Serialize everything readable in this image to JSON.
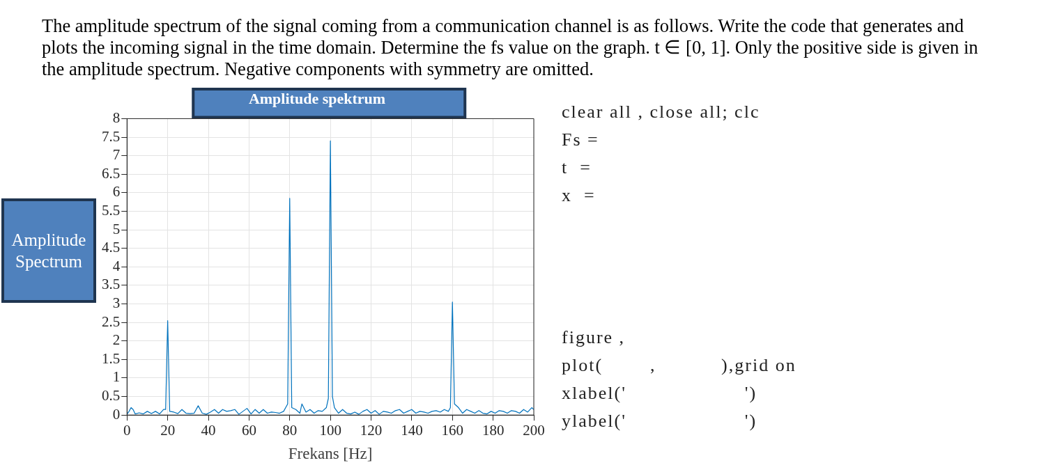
{
  "chart_data": {
    "type": "line",
    "title": "The amplitude spectrum of the signal coming from a communication channel is as follows. Write the code that generates and plots the incoming signal in the time domain. Determine the fs value on the graph. t ∈ [0, 1]. Only the positive side is given in the amplitude spectrum. Negative components with symmetry are omitted.",
    "subtitle": "Amplitude spektrum",
    "xlabel": "Frekans [Hz]",
    "ylabel": "Amplitude Spectrum",
    "annotations": [
      "clear all , close all; clc",
      "Fs =",
      "t  =",
      "x  =",
      "figure ,",
      "plot(        ,           ),grid on",
      "xlabel('                    ')",
      "ylabel('                    ')"
    ],
    "x": [
      0,
      1,
      2,
      3,
      4,
      6,
      8,
      10,
      12,
      14,
      16,
      18,
      19,
      20,
      21,
      23,
      25,
      27,
      29,
      31,
      33,
      35,
      37,
      39,
      41,
      43,
      45,
      47,
      49,
      51,
      53,
      55,
      57,
      59,
      61,
      63,
      65,
      67,
      69,
      71,
      73,
      75,
      77,
      79,
      80,
      81,
      83,
      85,
      86,
      88,
      90,
      92,
      94,
      96,
      98,
      99,
      100,
      101,
      102,
      104,
      106,
      108,
      110,
      112,
      114,
      116,
      118,
      120,
      122,
      124,
      126,
      128,
      130,
      132,
      134,
      136,
      138,
      140,
      142,
      144,
      146,
      148,
      150,
      152,
      154,
      156,
      158,
      159,
      160,
      161,
      163,
      165,
      167,
      169,
      171,
      173,
      175,
      177,
      179,
      181,
      183,
      185,
      187,
      189,
      191,
      193,
      195,
      197,
      199,
      200
    ],
    "series": [
      {
        "color": "#0072bd",
        "values": [
          0.02,
          0.1,
          0.2,
          0.15,
          0.03,
          0.06,
          0.03,
          0.1,
          0.04,
          0.1,
          0.03,
          0.15,
          0.15,
          2.55,
          0.1,
          0.08,
          0.04,
          0.15,
          0.05,
          0.04,
          0.05,
          0.25,
          0.05,
          0.02,
          0.08,
          0.15,
          0.05,
          0.15,
          0.1,
          0.12,
          0.15,
          0.02,
          0.1,
          0.18,
          0.03,
          0.15,
          0.05,
          0.15,
          0.05,
          0.08,
          0.07,
          0.05,
          0.1,
          0.3,
          5.85,
          0.2,
          0.15,
          0.05,
          0.3,
          0.08,
          0.15,
          0.05,
          0.12,
          0.1,
          0.2,
          0.45,
          7.4,
          0.5,
          0.2,
          0.05,
          0.15,
          0.05,
          0.03,
          0.08,
          0.02,
          0.1,
          0.15,
          0.05,
          0.12,
          0.02,
          0.1,
          0.08,
          0.05,
          0.12,
          0.15,
          0.05,
          0.1,
          0.15,
          0.05,
          0.1,
          0.08,
          0.05,
          0.1,
          0.12,
          0.08,
          0.15,
          0.1,
          0.2,
          3.05,
          0.3,
          0.2,
          0.05,
          0.15,
          0.1,
          0.05,
          0.12,
          0.05,
          0.03,
          0.1,
          0.05,
          0.12,
          0.1,
          0.05,
          0.12,
          0.1,
          0.05,
          0.15,
          0.08,
          0.2,
          0.15
        ]
      }
    ],
    "xlim": [
      0,
      200
    ],
    "xticks": [
      0,
      20,
      40,
      60,
      80,
      100,
      120,
      140,
      160,
      180,
      200
    ],
    "ylim": [
      0,
      8
    ],
    "yticks": [
      0,
      0.5,
      1,
      1.5,
      2,
      2.5,
      3,
      3.5,
      4,
      4.5,
      5,
      5.5,
      6,
      6.5,
      7,
      7.5,
      8
    ],
    "grid": true,
    "legend": false,
    "marker": "none",
    "line_style": "solid"
  }
}
